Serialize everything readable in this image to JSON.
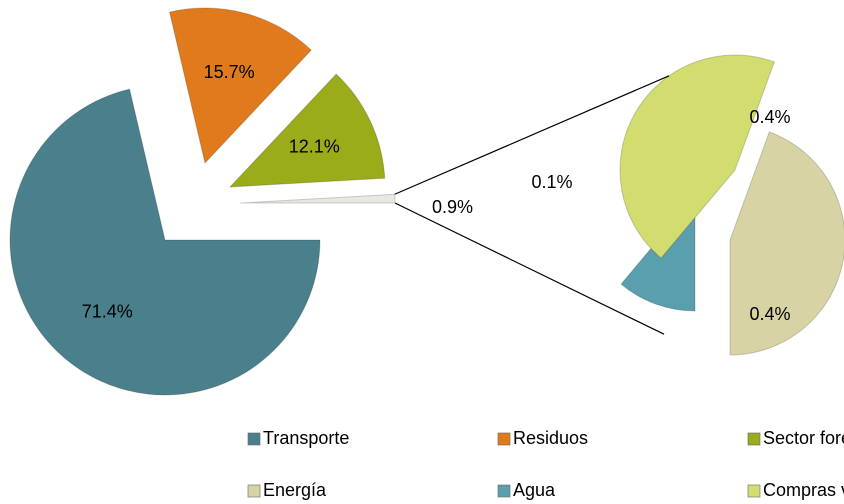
{
  "chart_data": {
    "type": "pie_of_pie",
    "categories": [
      "Transporte",
      "Residuos",
      "Sector forestal",
      "Energía",
      "Agua",
      "Compras verdes"
    ],
    "values": [
      71.4,
      15.7,
      12.1,
      0.4,
      0.1,
      0.4
    ],
    "value_labels": [
      "71.4%",
      "15.7%",
      "12.1%",
      "0.4%",
      "0.1%",
      "0.4%"
    ],
    "colors": [
      "#4a7f8c",
      "#e07a1c",
      "#9aac1a",
      "#d8d3a5",
      "#5a9fae",
      "#d3dc6e"
    ],
    "second_plot_values": 3,
    "other_value": 0.9,
    "other_label": "0.9%"
  }
}
